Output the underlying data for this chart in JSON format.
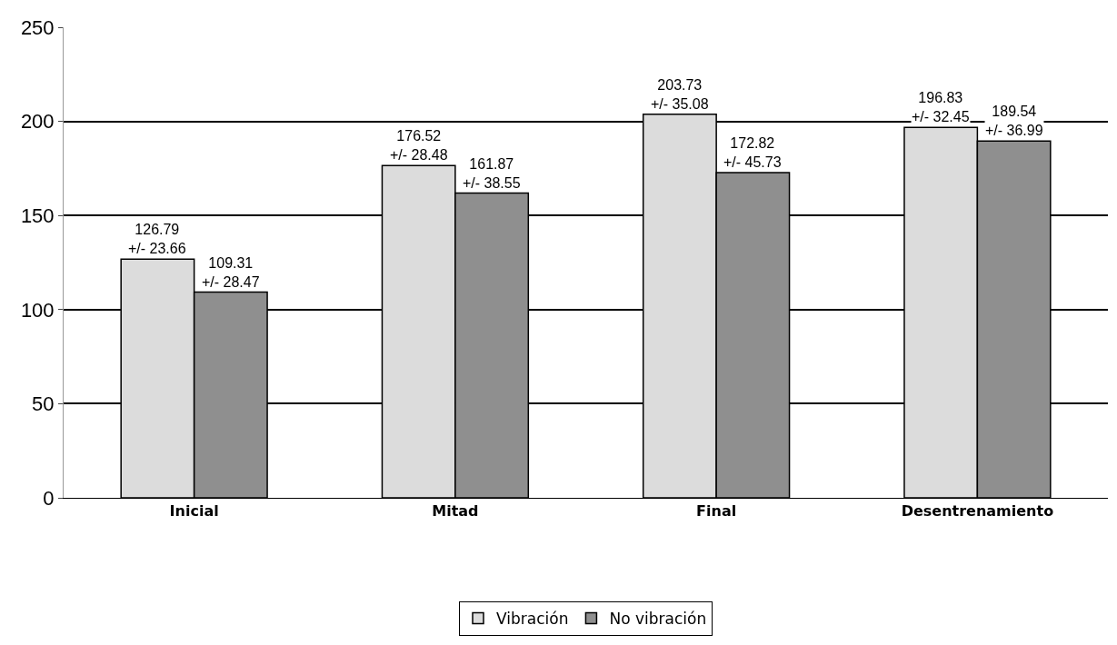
{
  "chart_data": {
    "type": "bar",
    "categories": [
      "Inicial",
      "Mitad",
      "Final",
      "Desentrenamiento"
    ],
    "series": [
      {
        "name": "Vibración",
        "color": "#dcdcdc",
        "values": [
          126.79,
          176.52,
          203.73,
          196.83
        ],
        "value_labels": [
          "126.79\n+/- 23.66",
          "176.52\n+/- 28.48",
          "203.73\n+/- 35.08",
          "196.83\n+/- 32.45"
        ]
      },
      {
        "name": "No vibración",
        "color": "#8f8f8f",
        "values": [
          109.31,
          161.87,
          172.82,
          189.54
        ],
        "value_labels": [
          "109.31\n+/- 28.47",
          "161.87\n+/- 38.55",
          "172.82\n+/- 45.73",
          "189.54\n+/- 36.99"
        ]
      }
    ],
    "ylim": [
      0,
      250
    ],
    "yticks": [
      0,
      50,
      100,
      150,
      200,
      250
    ],
    "grid": "y",
    "legend": "bottom"
  }
}
